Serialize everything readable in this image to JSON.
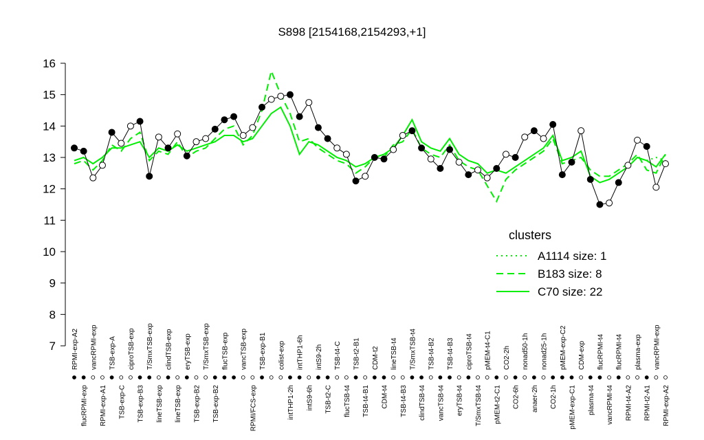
{
  "chart_data": {
    "type": "line",
    "title": "S898 [2154168,2154293,+1]",
    "ylim": [
      7,
      16
    ],
    "yticks": [
      7,
      8,
      9,
      10,
      11,
      12,
      13,
      14,
      15,
      16
    ],
    "line_color": "#000000",
    "legend_title": "clusters",
    "categories": [
      "RPMI-exp-A2",
      "flucRPMI-exp",
      "vancRPMI-exp",
      "RPMI-exp-A1",
      "TSB-exp-A",
      "TSB-exp-C",
      "ciproTSB-exp",
      "TSB-exp-B3",
      "T/SmxTSB-exp",
      "lineTSB-exp",
      "clindTSB-exp",
      "lineTSB-exp",
      "eryTSB-exp",
      "TSB-exp-B2",
      "T/SmxTSB-exp",
      "TSB-exp-B2",
      "flucTSB-exp",
      null,
      "vancTSB-exp",
      "RPMI/FCS-exp",
      "TSB-exp-B1",
      null,
      "colist-exp",
      "intTHP1-2h",
      "intTHP1-6h",
      "intS9-6h",
      "intS9-2h",
      "TSB-t2-C",
      "TSB-t4-C",
      "flucTSB-t4",
      "TSB-t2-B1",
      "TSB-t4-B1",
      "CDM-t2",
      "CDM-t4",
      "lineTSB-t4",
      "TSB-t4-B3",
      "T/SmxTSB-t4",
      "clindTSB-t4",
      "TSB-t4-B2",
      "vancTSB-t4",
      "TSB-t4-B3",
      "eryTSB-t4",
      "ciproTSB-t4",
      "T/SmxTSB-t4",
      "pMEM-t4-C1",
      "pMEM-t2-C1",
      "CO2-2h",
      "CO2-6h",
      "nonad50-1h",
      "anaer-2h",
      "nonad25-1h",
      "CO2-1h",
      "pMEM-exp-C2",
      "pMEM-exp-C1",
      "CDM-exp",
      "plasma-t4",
      "flucRPMI-t4",
      "vancRPMI-t4",
      "flucRPMI-t4",
      "RPMI-t4-A2",
      "plasma-exp",
      "RPMI-t2-A1",
      "vancRPMI-exp",
      "RPMI-exp-A2"
    ],
    "values": [
      13.3,
      13.2,
      12.35,
      12.75,
      13.8,
      13.45,
      14.0,
      14.15,
      12.4,
      13.65,
      13.3,
      13.75,
      13.05,
      13.5,
      13.6,
      13.9,
      14.2,
      14.3,
      13.7,
      13.95,
      14.6,
      14.85,
      14.95,
      15.0,
      14.3,
      14.75,
      13.95,
      13.6,
      13.3,
      13.1,
      12.25,
      12.4,
      13.0,
      12.95,
      13.25,
      13.7,
      13.85,
      13.3,
      12.95,
      12.65,
      13.25,
      12.85,
      12.45,
      12.6,
      12.35,
      12.65,
      13.1,
      13.0,
      13.65,
      13.85,
      13.6,
      14.05,
      12.45,
      12.85,
      13.85,
      12.3,
      11.5,
      11.55,
      12.2,
      12.75,
      13.55,
      13.35,
      12.05,
      12.8
    ],
    "point_fills": [
      "black",
      "black",
      "white",
      "white",
      "black",
      "white",
      "white",
      "black",
      "black",
      "white",
      "black",
      "white",
      "black",
      "white",
      "white",
      "black",
      "black",
      "black",
      "white",
      "white",
      "black",
      "white",
      "white",
      "black",
      "black",
      "white",
      "black",
      "black",
      "white",
      "white",
      "black",
      "white",
      "black",
      "black",
      "white",
      "white",
      "black",
      "black",
      "white",
      "black",
      "black",
      "white",
      "black",
      "white",
      "white",
      "black",
      "white",
      "black",
      "white",
      "black",
      "white",
      "black",
      "black",
      "black",
      "white",
      "black",
      "black",
      "white",
      "black",
      "white",
      "white",
      "black",
      "white",
      "white"
    ],
    "series": [
      {
        "name": "A1114 size: 1",
        "color": "#00ee00",
        "dash": "dotted",
        "values": [
          null,
          null,
          null,
          null,
          null,
          null,
          null,
          null,
          null,
          null,
          null,
          null,
          null,
          null,
          null,
          null,
          null,
          null,
          null,
          null,
          null,
          null,
          null,
          null,
          null,
          null,
          null,
          null,
          null,
          null,
          null,
          null,
          null,
          null,
          null,
          null,
          null,
          null,
          null,
          null,
          null,
          null,
          null,
          null,
          null,
          null,
          null,
          null,
          null,
          null,
          null,
          null,
          null,
          null,
          null,
          null,
          null,
          null,
          null,
          null,
          null,
          12.9,
          13.0,
          12.9
        ]
      },
      {
        "name": "B183 size: 8",
        "color": "#00ee00",
        "dash": "dashed",
        "values": [
          12.8,
          12.9,
          12.6,
          12.9,
          13.4,
          13.2,
          13.6,
          13.8,
          12.9,
          13.2,
          13.1,
          13.5,
          13.0,
          13.2,
          13.3,
          13.6,
          13.9,
          14.0,
          13.4,
          13.7,
          14.5,
          15.75,
          15.0,
          14.4,
          13.5,
          13.6,
          13.3,
          13.1,
          12.9,
          12.8,
          12.5,
          12.7,
          13.0,
          13.0,
          13.4,
          13.5,
          13.9,
          13.3,
          13.1,
          13.0,
          13.4,
          12.9,
          12.7,
          12.6,
          12.1,
          11.6,
          12.3,
          12.6,
          12.8,
          13.0,
          13.2,
          13.6,
          12.8,
          12.9,
          13.0,
          12.6,
          12.4,
          12.4,
          12.6,
          12.8,
          13.1,
          12.6,
          12.5,
          13.1
        ]
      },
      {
        "name": "C70 size: 22",
        "color": "#00ee00",
        "dash": "solid",
        "values": [
          12.9,
          13.0,
          12.8,
          13.0,
          13.3,
          13.3,
          13.4,
          13.5,
          13.0,
          13.3,
          13.2,
          13.4,
          13.2,
          13.3,
          13.4,
          13.5,
          13.7,
          13.7,
          13.5,
          13.6,
          14.0,
          14.4,
          14.6,
          14.0,
          13.1,
          13.5,
          13.4,
          13.2,
          13.0,
          12.9,
          12.7,
          12.8,
          13.0,
          13.1,
          13.3,
          13.7,
          14.2,
          13.5,
          13.3,
          13.2,
          13.6,
          13.1,
          12.9,
          12.8,
          12.5,
          12.6,
          12.5,
          12.7,
          12.9,
          13.1,
          13.3,
          13.7,
          12.9,
          13.0,
          13.2,
          12.4,
          12.2,
          12.3,
          12.5,
          12.7,
          13.0,
          12.9,
          12.7,
          13.1
        ]
      }
    ]
  }
}
